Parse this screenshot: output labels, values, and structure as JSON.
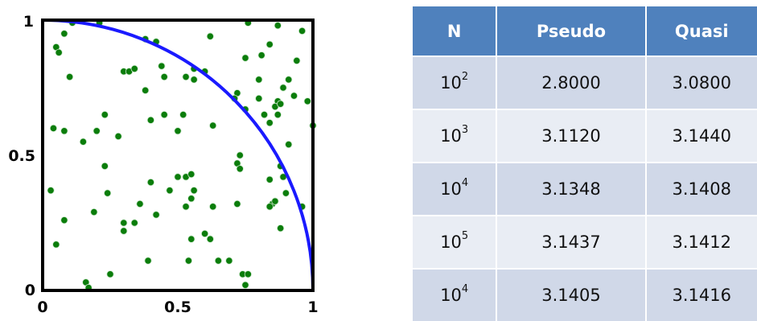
{
  "chart_data": [
    {
      "type": "scatter",
      "title": "",
      "xlabel": "",
      "ylabel": "",
      "xlim": [
        0,
        1
      ],
      "ylim": [
        0,
        1
      ],
      "x_ticks": [
        "0",
        "0.5",
        "1"
      ],
      "y_ticks": [
        "0",
        "0.5",
        "1"
      ],
      "grid": false,
      "colors": {
        "points": "#0b7d0b",
        "curve": "#1a1aff",
        "axes": "#000000"
      },
      "curve": {
        "kind": "quarter-circle",
        "radius": 1
      },
      "points": [
        [
          0.11,
          0.99
        ],
        [
          0.21,
          0.99
        ],
        [
          0.38,
          0.93
        ],
        [
          0.42,
          0.92
        ],
        [
          0.76,
          0.99
        ],
        [
          0.87,
          0.98
        ],
        [
          0.96,
          0.96
        ],
        [
          0.62,
          0.94
        ],
        [
          0.08,
          0.95
        ],
        [
          0.05,
          0.9
        ],
        [
          0.06,
          0.88
        ],
        [
          0.75,
          0.86
        ],
        [
          0.81,
          0.87
        ],
        [
          0.84,
          0.91
        ],
        [
          0.44,
          0.83
        ],
        [
          0.56,
          0.82
        ],
        [
          0.6,
          0.81
        ],
        [
          0.94,
          0.85
        ],
        [
          0.1,
          0.79
        ],
        [
          0.3,
          0.81
        ],
        [
          0.32,
          0.81
        ],
        [
          0.34,
          0.82
        ],
        [
          0.45,
          0.79
        ],
        [
          0.53,
          0.79
        ],
        [
          0.56,
          0.78
        ],
        [
          0.8,
          0.78
        ],
        [
          0.91,
          0.78
        ],
        [
          0.89,
          0.75
        ],
        [
          0.93,
          0.72
        ],
        [
          0.72,
          0.73
        ],
        [
          0.71,
          0.71
        ],
        [
          0.8,
          0.71
        ],
        [
          0.87,
          0.7
        ],
        [
          0.98,
          0.7
        ],
        [
          0.86,
          0.68
        ],
        [
          0.88,
          0.69
        ],
        [
          0.38,
          0.74
        ],
        [
          0.75,
          0.67
        ],
        [
          0.82,
          0.65
        ],
        [
          0.87,
          0.65
        ],
        [
          0.23,
          0.65
        ],
        [
          0.45,
          0.65
        ],
        [
          0.52,
          0.65
        ],
        [
          0.4,
          0.63
        ],
        [
          0.84,
          0.62
        ],
        [
          0.63,
          0.61
        ],
        [
          0.04,
          0.6
        ],
        [
          0.08,
          0.59
        ],
        [
          0.2,
          0.59
        ],
        [
          0.28,
          0.57
        ],
        [
          0.5,
          0.59
        ],
        [
          1.0,
          0.61
        ],
        [
          0.15,
          0.55
        ],
        [
          0.91,
          0.54
        ],
        [
          0.73,
          0.5
        ],
        [
          0.72,
          0.47
        ],
        [
          0.73,
          0.45
        ],
        [
          0.23,
          0.46
        ],
        [
          0.88,
          0.46
        ],
        [
          0.5,
          0.42
        ],
        [
          0.53,
          0.42
        ],
        [
          0.55,
          0.43
        ],
        [
          0.89,
          0.42
        ],
        [
          0.4,
          0.4
        ],
        [
          0.84,
          0.41
        ],
        [
          0.03,
          0.37
        ],
        [
          0.47,
          0.37
        ],
        [
          0.56,
          0.37
        ],
        [
          0.24,
          0.36
        ],
        [
          0.55,
          0.34
        ],
        [
          0.9,
          0.36
        ],
        [
          0.36,
          0.32
        ],
        [
          0.72,
          0.32
        ],
        [
          0.85,
          0.32
        ],
        [
          0.86,
          0.33
        ],
        [
          0.84,
          0.31
        ],
        [
          0.96,
          0.31
        ],
        [
          0.53,
          0.31
        ],
        [
          0.63,
          0.31
        ],
        [
          0.19,
          0.29
        ],
        [
          0.42,
          0.28
        ],
        [
          0.08,
          0.26
        ],
        [
          0.3,
          0.25
        ],
        [
          0.34,
          0.25
        ],
        [
          0.3,
          0.22
        ],
        [
          0.88,
          0.23
        ],
        [
          0.6,
          0.21
        ],
        [
          0.55,
          0.19
        ],
        [
          0.62,
          0.19
        ],
        [
          0.05,
          0.17
        ],
        [
          0.39,
          0.11
        ],
        [
          0.54,
          0.11
        ],
        [
          0.65,
          0.11
        ],
        [
          0.69,
          0.11
        ],
        [
          0.25,
          0.06
        ],
        [
          0.74,
          0.06
        ],
        [
          0.76,
          0.06
        ],
        [
          0.16,
          0.03
        ],
        [
          0.17,
          0.01
        ],
        [
          0.75,
          0.02
        ]
      ]
    },
    {
      "type": "table",
      "columns": [
        "N",
        "Pseudo",
        "Quasi"
      ],
      "rows": [
        {
          "n_base": "10",
          "n_exp": "2",
          "pseudo": "2.8000",
          "quasi": "3.0800"
        },
        {
          "n_base": "10",
          "n_exp": "3",
          "pseudo": "3.1120",
          "quasi": "3.1440"
        },
        {
          "n_base": "10",
          "n_exp": "4",
          "pseudo": "3.1348",
          "quasi": "3.1408"
        },
        {
          "n_base": "10",
          "n_exp": "5",
          "pseudo": "3.1437",
          "quasi": "3.1412"
        },
        {
          "n_base": "10",
          "n_exp": "4",
          "pseudo": "3.1405",
          "quasi": "3.1416"
        }
      ],
      "colors": {
        "header": "#4f81bd",
        "row_odd": "#d0d8e8",
        "row_even": "#e9edf4"
      }
    }
  ]
}
